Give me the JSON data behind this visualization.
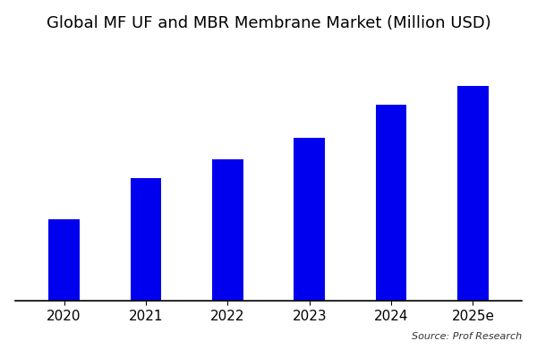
{
  "categories": [
    "2020",
    "2021",
    "2022",
    "2023",
    "2024",
    "2025e"
  ],
  "values": [
    3.0,
    4.5,
    5.2,
    6.0,
    7.2,
    7.9
  ],
  "bar_color": "#0000EE",
  "title": "Global MF UF and MBR Membrane Market (Million USD)",
  "title_fontsize": 13,
  "ylim": [
    0,
    9.5
  ],
  "background_color": "#ffffff",
  "source_text": "Source: Prof Research",
  "bar_width": 0.38,
  "tick_fontsize": 11
}
